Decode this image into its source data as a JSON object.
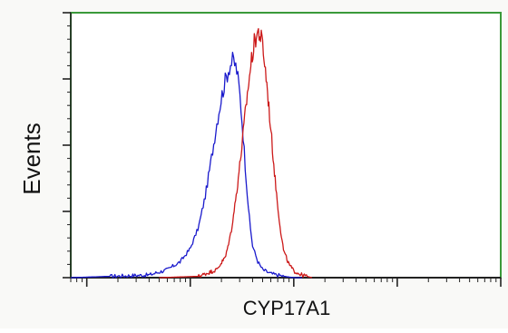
{
  "chart_data": {
    "type": "line",
    "xlabel": "CYP17A1",
    "ylabel": "Events",
    "xscale": "log",
    "xlim": [
      0.7,
      10000
    ],
    "ylim": [
      0,
      100
    ],
    "grid": false,
    "legend": "none",
    "frame_color": "#3a9a3a",
    "series": [
      {
        "color": "#1a1acc",
        "x": [
          0.7,
          4,
          6,
          8,
          10,
          12,
          14,
          16,
          18,
          20,
          22,
          24,
          26,
          28,
          30,
          32,
          34,
          36,
          38,
          40,
          45,
          50,
          60,
          70,
          80,
          100,
          120
        ],
        "y": [
          0,
          1,
          3,
          6,
          11,
          19,
          31,
          45,
          58,
          68,
          75,
          80,
          82,
          79,
          70,
          57,
          42,
          29,
          19,
          12,
          6,
          3,
          1.5,
          1,
          0.5,
          0,
          0
        ]
      },
      {
        "color": "#cc1a1a",
        "x": [
          5,
          12,
          18,
          22,
          25,
          28,
          31,
          34,
          37,
          40,
          43,
          46,
          50,
          55,
          60,
          65,
          70,
          75,
          80,
          90,
          100,
          120,
          150
        ],
        "y": [
          0,
          0.5,
          3,
          8,
          18,
          32,
          47,
          62,
          75,
          85,
          91,
          93,
          88,
          73,
          56,
          40,
          27,
          17,
          10,
          5,
          2.5,
          1,
          0
        ]
      }
    ]
  }
}
